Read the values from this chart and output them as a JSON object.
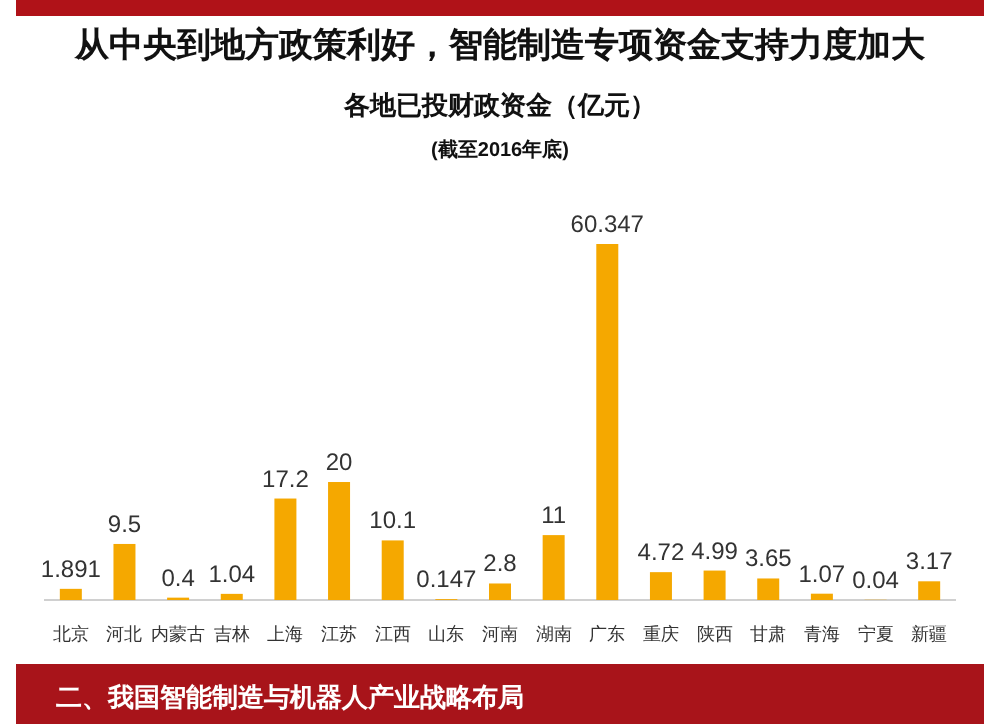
{
  "chart_data": {
    "type": "bar",
    "title": "从中央到地方政策利好，智能制造专项资金支持力度加大",
    "subtitle": "各地已投财政资金（亿元）",
    "categories": [
      "北京",
      "河北",
      "内蒙古",
      "吉林",
      "上海",
      "江苏",
      "江西",
      "山东",
      "河南",
      "湖南",
      "广东",
      "重庆",
      "陕西",
      "甘肃",
      "青海",
      "宁夏",
      "新疆"
    ],
    "values": [
      1.891,
      9.5,
      0.4,
      1.04,
      17.2,
      20,
      10.1,
      0.147,
      2.8,
      11,
      60.347,
      4.72,
      4.99,
      3.65,
      1.07,
      0.04,
      3.17
    ],
    "color": "#f5a800",
    "data_labels": true,
    "annotations": [
      "(截至2016年底)",
      "二、我国智能制造与机器人产业战略布局"
    ]
  }
}
